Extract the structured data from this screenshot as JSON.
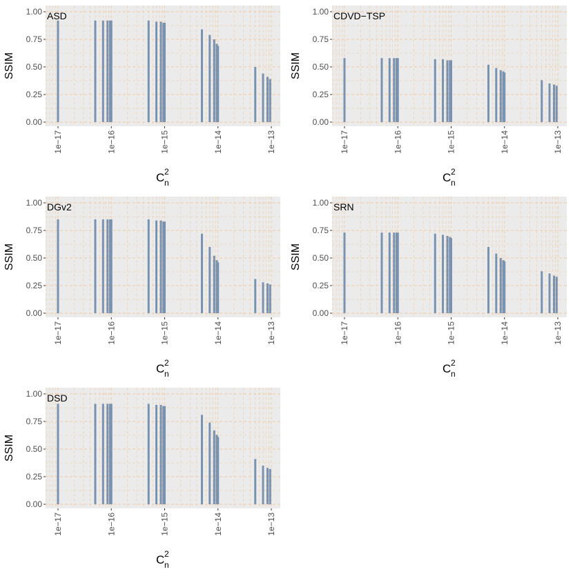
{
  "chart_data": [
    {
      "type": "bar",
      "panel_label": "ASD",
      "xlabel": "C",
      "xlabel_sup": "2",
      "xlabel_sub": "n",
      "ylabel": "SSIM",
      "x_scale": "log10",
      "xlim": [
        1e-17,
        1e-13
      ],
      "ylim": [
        0,
        1
      ],
      "x_ticks": [
        "1e−17",
        "1e−16",
        "1e−15",
        "1e−14",
        "1e−13"
      ],
      "y_ticks": [
        "0.00",
        "0.25",
        "0.50",
        "0.75",
        "1.00"
      ],
      "grid": "dashed-orange",
      "x": [
        1e-17,
        5e-17,
        7e-17,
        8.5e-17,
        9.5e-17,
        1e-16,
        5e-16,
        7e-16,
        8.5e-16,
        9.5e-16,
        1e-15,
        5e-15,
        7e-15,
        8.5e-15,
        9.5e-15,
        1e-14,
        5e-14,
        7e-14,
        8.5e-14,
        9.5e-14
      ],
      "values": [
        0.92,
        0.92,
        0.92,
        0.92,
        0.92,
        0.92,
        0.92,
        0.91,
        0.91,
        0.9,
        0.9,
        0.84,
        0.79,
        0.75,
        0.71,
        0.69,
        0.5,
        0.44,
        0.41,
        0.39
      ]
    },
    {
      "type": "bar",
      "panel_label": "CDVD−TSP",
      "xlabel": "C",
      "xlabel_sup": "2",
      "xlabel_sub": "n",
      "ylabel": "SSIM",
      "x_scale": "log10",
      "xlim": [
        1e-17,
        1e-13
      ],
      "ylim": [
        0,
        1
      ],
      "x_ticks": [
        "1e−17",
        "1e−16",
        "1e−15",
        "1e−14",
        "1e−13"
      ],
      "y_ticks": [
        "0.00",
        "0.25",
        "0.50",
        "0.75",
        "1.00"
      ],
      "grid": "dashed-orange",
      "x": [
        1e-17,
        5e-17,
        7e-17,
        8.5e-17,
        9.5e-17,
        1e-16,
        5e-16,
        7e-16,
        8.5e-16,
        9.5e-16,
        1e-15,
        5e-15,
        7e-15,
        8.5e-15,
        9.5e-15,
        1e-14,
        5e-14,
        7e-14,
        8.5e-14,
        9.5e-14
      ],
      "values": [
        0.58,
        0.58,
        0.58,
        0.58,
        0.58,
        0.58,
        0.57,
        0.57,
        0.56,
        0.56,
        0.56,
        0.52,
        0.49,
        0.47,
        0.46,
        0.45,
        0.38,
        0.35,
        0.34,
        0.33
      ]
    },
    {
      "type": "bar",
      "panel_label": "DGv2",
      "xlabel": "C",
      "xlabel_sup": "2",
      "xlabel_sub": "n",
      "ylabel": "SSIM",
      "x_scale": "log10",
      "xlim": [
        1e-17,
        1e-13
      ],
      "ylim": [
        0,
        1
      ],
      "x_ticks": [
        "1e−17",
        "1e−16",
        "1e−15",
        "1e−14",
        "1e−13"
      ],
      "y_ticks": [
        "0.00",
        "0.25",
        "0.50",
        "0.75",
        "1.00"
      ],
      "grid": "dashed-orange",
      "x": [
        1e-17,
        5e-17,
        7e-17,
        8.5e-17,
        9.5e-17,
        1e-16,
        5e-16,
        7e-16,
        8.5e-16,
        9.5e-16,
        1e-15,
        5e-15,
        7e-15,
        8.5e-15,
        9.5e-15,
        1e-14,
        5e-14,
        7e-14,
        8.5e-14,
        9.5e-14
      ],
      "values": [
        0.85,
        0.85,
        0.85,
        0.85,
        0.85,
        0.85,
        0.85,
        0.84,
        0.84,
        0.83,
        0.83,
        0.72,
        0.6,
        0.52,
        0.48,
        0.46,
        0.31,
        0.28,
        0.27,
        0.26
      ]
    },
    {
      "type": "bar",
      "panel_label": "SRN",
      "xlabel": "C",
      "xlabel_sup": "2",
      "xlabel_sub": "n",
      "ylabel": "SSIM",
      "x_scale": "log10",
      "xlim": [
        1e-17,
        1e-13
      ],
      "ylim": [
        0,
        1
      ],
      "x_ticks": [
        "1e−17",
        "1e−16",
        "1e−15",
        "1e−14",
        "1e−13"
      ],
      "y_ticks": [
        "0.00",
        "0.25",
        "0.50",
        "0.75",
        "1.00"
      ],
      "grid": "dashed-orange",
      "x": [
        1e-17,
        5e-17,
        7e-17,
        8.5e-17,
        9.5e-17,
        1e-16,
        5e-16,
        7e-16,
        8.5e-16,
        9.5e-16,
        1e-15,
        5e-15,
        7e-15,
        8.5e-15,
        9.5e-15,
        1e-14,
        5e-14,
        7e-14,
        8.5e-14,
        9.5e-14
      ],
      "values": [
        0.73,
        0.73,
        0.73,
        0.73,
        0.73,
        0.73,
        0.72,
        0.71,
        0.7,
        0.69,
        0.68,
        0.6,
        0.54,
        0.5,
        0.48,
        0.47,
        0.38,
        0.36,
        0.34,
        0.33
      ]
    },
    {
      "type": "bar",
      "panel_label": "DSD",
      "xlabel": "C",
      "xlabel_sup": "2",
      "xlabel_sub": "n",
      "ylabel": "SSIM",
      "x_scale": "log10",
      "xlim": [
        1e-17,
        1e-13
      ],
      "ylim": [
        0,
        1
      ],
      "x_ticks": [
        "1e−17",
        "1e−16",
        "1e−15",
        "1e−14",
        "1e−13"
      ],
      "y_ticks": [
        "0.00",
        "0.25",
        "0.50",
        "0.75",
        "1.00"
      ],
      "grid": "dashed-orange",
      "x": [
        1e-17,
        5e-17,
        7e-17,
        8.5e-17,
        9.5e-17,
        1e-16,
        5e-16,
        7e-16,
        8.5e-16,
        9.5e-16,
        1e-15,
        5e-15,
        7e-15,
        8.5e-15,
        9.5e-15,
        1e-14,
        5e-14,
        7e-14,
        8.5e-14,
        9.5e-14
      ],
      "values": [
        0.91,
        0.91,
        0.91,
        0.91,
        0.91,
        0.91,
        0.91,
        0.9,
        0.9,
        0.89,
        0.89,
        0.81,
        0.74,
        0.67,
        0.63,
        0.61,
        0.41,
        0.35,
        0.33,
        0.32
      ]
    }
  ],
  "colors": {
    "panel_background": "#ebebeb",
    "bar": "#7892b0",
    "grid": "#f2c79a",
    "axis_text": "#4d4d4d",
    "title_text": "#000000"
  }
}
